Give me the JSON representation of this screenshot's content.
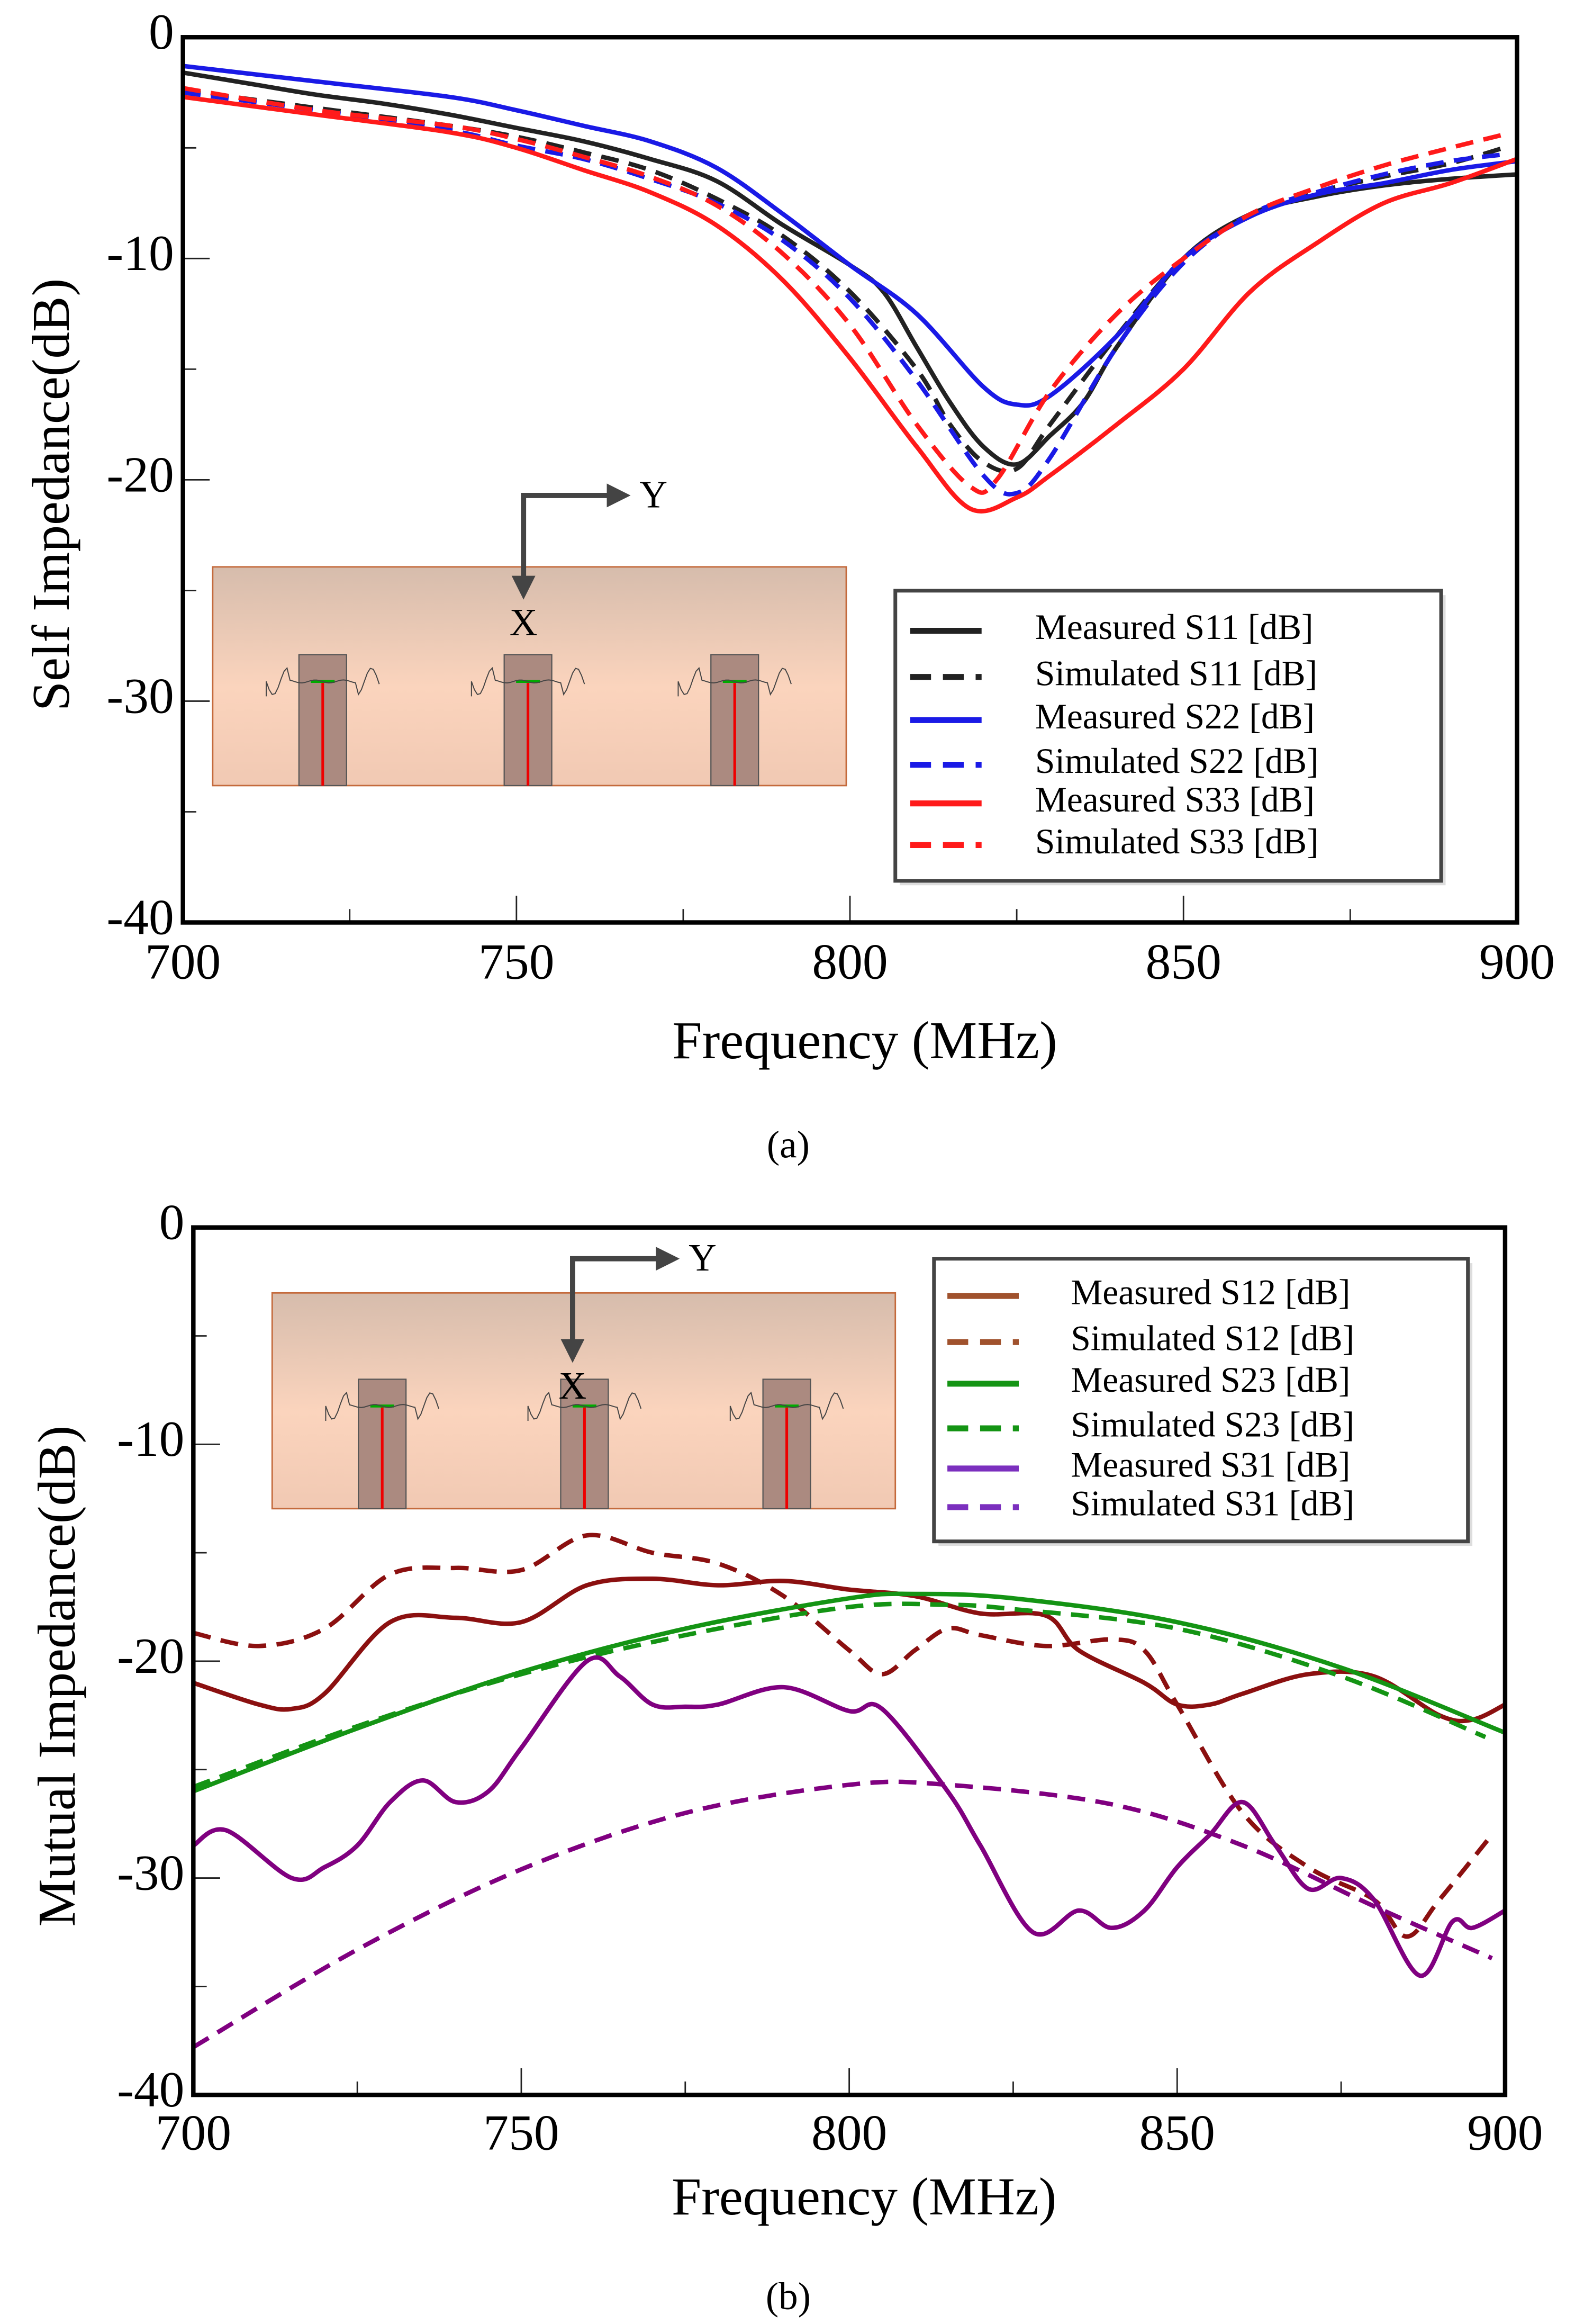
{
  "chart_data": [
    {
      "type": "line",
      "caption": "(a)",
      "xlabel": "Frequency (MHz)",
      "ylabel": "Self Impedance(dB)",
      "xlim": [
        700,
        900
      ],
      "ylim": [
        -40,
        0
      ],
      "xticks": [
        "700",
        "750",
        "800",
        "850",
        "900"
      ],
      "yticks": [
        "0",
        "-10",
        "-20",
        "-30",
        "-40"
      ],
      "legend_position": "bottom-right",
      "inset": {
        "x_label": "X",
        "y_label": "Y"
      },
      "series": [
        {
          "name": "Measured S11 [dB]",
          "color": "#222222",
          "dashed": false,
          "x": [
            700,
            710,
            720,
            730,
            740,
            750,
            760,
            770,
            780,
            790,
            800,
            805,
            810,
            815,
            820,
            825,
            830,
            835,
            840,
            850,
            860,
            870,
            880,
            890,
            900
          ],
          "y": [
            -1.6,
            -2.1,
            -2.6,
            -3.0,
            -3.5,
            -4.1,
            -4.7,
            -5.5,
            -6.5,
            -8.5,
            -10.3,
            -11.5,
            -14,
            -16.5,
            -18.5,
            -19.3,
            -18,
            -16.5,
            -14,
            -10,
            -8,
            -7.2,
            -6.7,
            -6.4,
            -6.2
          ]
        },
        {
          "name": "Simulated S11 [dB]",
          "color": "#222222",
          "dashed": true,
          "x": [
            700,
            720,
            740,
            750,
            760,
            770,
            780,
            790,
            800,
            810,
            815,
            820,
            825,
            830,
            840,
            850,
            860,
            870,
            880,
            890,
            898
          ],
          "y": [
            -2.4,
            -3.2,
            -4.0,
            -4.5,
            -5.2,
            -6.0,
            -7.3,
            -9,
            -11.5,
            -15,
            -17.5,
            -19.2,
            -19.5,
            -17.5,
            -13.5,
            -10,
            -8,
            -7,
            -6.3,
            -5.7,
            -5.0
          ]
        },
        {
          "name": "Measured S22 [dB]",
          "color": "#1a1ae6",
          "dashed": false,
          "x": [
            700,
            720,
            740,
            750,
            760,
            770,
            780,
            790,
            800,
            810,
            820,
            825,
            830,
            840,
            850,
            860,
            870,
            880,
            890,
            900
          ],
          "y": [
            -1.3,
            -2.0,
            -2.7,
            -3.3,
            -4.0,
            -4.7,
            -5.9,
            -8,
            -10.3,
            -12.5,
            -15.8,
            -16.6,
            -16.2,
            -13.5,
            -10,
            -8.1,
            -7.1,
            -6.6,
            -6.0,
            -5.6
          ]
        },
        {
          "name": "Simulated S22 [dB]",
          "color": "#1a1ae6",
          "dashed": true,
          "x": [
            700,
            720,
            740,
            750,
            760,
            770,
            780,
            790,
            800,
            810,
            820,
            825,
            830,
            840,
            850,
            860,
            870,
            880,
            890,
            898
          ],
          "y": [
            -2.5,
            -3.3,
            -4.2,
            -4.9,
            -5.5,
            -6.4,
            -7.5,
            -9.2,
            -11.8,
            -15.5,
            -19.8,
            -20.6,
            -19,
            -14,
            -10.2,
            -8,
            -7,
            -6.2,
            -5.6,
            -5.3
          ]
        },
        {
          "name": "Measured S33 [dB]",
          "color": "#ff1a1a",
          "dashed": false,
          "x": [
            700,
            720,
            740,
            750,
            760,
            770,
            780,
            790,
            800,
            810,
            818,
            825,
            830,
            840,
            850,
            860,
            870,
            880,
            890,
            900
          ],
          "y": [
            -2.7,
            -3.5,
            -4.3,
            -5.0,
            -6.0,
            -7.0,
            -8.5,
            -11,
            -14.5,
            -18.5,
            -21.3,
            -20.8,
            -19.8,
            -17.5,
            -15,
            -11.5,
            -9.3,
            -7.5,
            -6.6,
            -5.5
          ]
        },
        {
          "name": "Simulated S33 [dB]",
          "color": "#ff1a1a",
          "dashed": true,
          "x": [
            700,
            720,
            740,
            750,
            760,
            770,
            780,
            790,
            800,
            810,
            818,
            822,
            830,
            840,
            850,
            860,
            870,
            880,
            890,
            898
          ],
          "y": [
            -2.3,
            -3.3,
            -4.0,
            -4.6,
            -5.4,
            -6.3,
            -7.6,
            -9.8,
            -13,
            -17.5,
            -20.3,
            -20,
            -16,
            -12.5,
            -10,
            -8,
            -6.8,
            -5.8,
            -5.0,
            -4.4
          ]
        }
      ]
    },
    {
      "type": "line",
      "caption": "(b)",
      "xlabel": "Frequency (MHz)",
      "ylabel": "Mutual Impedance(dB)",
      "xlim": [
        700,
        900
      ],
      "ylim": [
        -40,
        0
      ],
      "xticks": [
        "700",
        "750",
        "800",
        "850",
        "900"
      ],
      "yticks": [
        "0",
        "-10",
        "-20",
        "-30",
        "-40"
      ],
      "legend_position": "top-right",
      "inset": {
        "x_label": "X",
        "y_label": "Y"
      },
      "series": [
        {
          "name": "Measured S12 [dB]",
          "color": "#8b1010",
          "legend_color": "#a0522d",
          "dashed": false,
          "x": [
            700,
            710,
            715,
            720,
            730,
            740,
            750,
            760,
            770,
            780,
            790,
            800,
            810,
            820,
            830,
            835,
            845,
            850,
            855,
            860,
            870,
            880,
            890,
            895,
            900
          ],
          "y": [
            -21,
            -22,
            -22.2,
            -21.5,
            -18.2,
            -18,
            -18.2,
            -16.5,
            -16.2,
            -16.5,
            -16.3,
            -16.7,
            -17.0,
            -17.8,
            -17.9,
            -19.5,
            -21,
            -22,
            -22,
            -21.5,
            -20.6,
            -20.7,
            -22.5,
            -22.7,
            -22
          ]
        },
        {
          "name": "Simulated S12 [dB]",
          "color": "#8b1010",
          "legend_color": "#a0522d",
          "dashed": true,
          "x": [
            700,
            710,
            720,
            730,
            740,
            750,
            760,
            770,
            780,
            790,
            800,
            805,
            810,
            815,
            820,
            830,
            840,
            845,
            850,
            860,
            870,
            880,
            885,
            890,
            898
          ],
          "y": [
            -18.7,
            -19.3,
            -18.5,
            -16,
            -15.7,
            -15.8,
            -14.2,
            -15,
            -15.5,
            -17,
            -19.5,
            -20.6,
            -19.5,
            -18.5,
            -18.8,
            -19.3,
            -19,
            -19.5,
            -22,
            -27,
            -29.5,
            -31,
            -32.7,
            -31,
            -28
          ]
        },
        {
          "name": "Measured S23 [dB]",
          "color": "#149414",
          "dashed": false,
          "x": [
            700,
            725,
            750,
            775,
            800,
            810,
            825,
            850,
            875,
            900
          ],
          "y": [
            -26,
            -23.1,
            -20.5,
            -18.5,
            -17.1,
            -16.9,
            -17.1,
            -18.2,
            -20.3,
            -23.3
          ]
        },
        {
          "name": "Simulated S23 [dB]",
          "color": "#149414",
          "dashed": true,
          "x": [
            700,
            725,
            750,
            775,
            800,
            815,
            825,
            850,
            875,
            897
          ],
          "y": [
            -25.8,
            -23.0,
            -20.6,
            -18.8,
            -17.5,
            -17.4,
            -17.6,
            -18.5,
            -20.7,
            -23.5
          ]
        },
        {
          "name": "Measured S31 [dB]",
          "color": "#800080",
          "legend_color": "#7b2fbe",
          "dashed": false,
          "x": [
            700,
            705,
            715,
            720,
            725,
            730,
            735,
            740,
            745,
            750,
            760,
            765,
            770,
            775,
            780,
            790,
            800,
            805,
            815,
            820,
            828,
            835,
            840,
            845,
            850,
            855,
            860,
            865,
            870,
            875,
            880,
            887,
            892,
            895,
            900
          ],
          "y": [
            -28.5,
            -27.8,
            -30,
            -29.5,
            -28.5,
            -26.5,
            -25.5,
            -26.5,
            -26,
            -24,
            -20,
            -20.7,
            -22,
            -22.1,
            -22,
            -21.2,
            -22.3,
            -22.2,
            -26,
            -28.5,
            -32.5,
            -31.5,
            -32.3,
            -31.5,
            -29.5,
            -28,
            -26.5,
            -28.5,
            -30.5,
            -30,
            -31,
            -34.5,
            -32,
            -32.3,
            -31.5
          ]
        },
        {
          "name": "Simulated S31 [dB]",
          "color": "#800080",
          "legend_color": "#7b2fbe",
          "dashed": true,
          "x": [
            700,
            725,
            750,
            775,
            800,
            815,
            840,
            860,
            880,
            898
          ],
          "y": [
            -37.8,
            -33.3,
            -29.6,
            -27,
            -25.7,
            -25.7,
            -26.6,
            -28.5,
            -31.3,
            -33.7
          ]
        }
      ]
    }
  ]
}
